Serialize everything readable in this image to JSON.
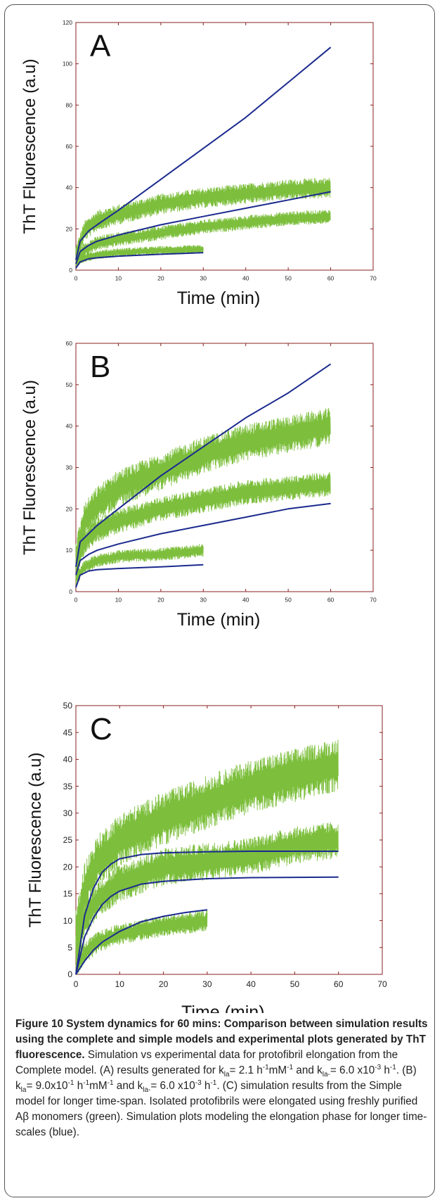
{
  "colors": {
    "experimental": "#7dbf3d",
    "simulation": "#1b2a8e",
    "axis": "#8a2020"
  },
  "chart_data": [
    {
      "type": "line",
      "panel_label": "A",
      "xlabel": "Time (min)",
      "ylabel": "ThT Fluorescence (a.u)",
      "xlim": [
        0,
        70
      ],
      "ylim": [
        0,
        120
      ],
      "xticks": [
        "0",
        "10",
        "20",
        "30",
        "40",
        "50",
        "60",
        "70"
      ],
      "yticks": [
        "0",
        "20",
        "40",
        "60",
        "80",
        "100",
        "120"
      ],
      "series": [
        {
          "kind": "experimental",
          "t_end": 60,
          "points": [
            [
              0,
              7
            ],
            [
              2,
              19
            ],
            [
              5,
              24
            ],
            [
              10,
              27
            ],
            [
              20,
              32
            ],
            [
              30,
              35
            ],
            [
              40,
              37
            ],
            [
              50,
              39
            ],
            [
              60,
              40
            ]
          ],
          "noise": 5
        },
        {
          "kind": "experimental",
          "t_end": 60,
          "points": [
            [
              0,
              5
            ],
            [
              2,
              10
            ],
            [
              5,
              13
            ],
            [
              10,
              15
            ],
            [
              20,
              18
            ],
            [
              30,
              21
            ],
            [
              40,
              23
            ],
            [
              50,
              25
            ],
            [
              60,
              26
            ]
          ],
          "noise": 3.5
        },
        {
          "kind": "experimental",
          "t_end": 30,
          "points": [
            [
              0,
              3
            ],
            [
              2,
              6
            ],
            [
              5,
              7.5
            ],
            [
              10,
              8.5
            ],
            [
              20,
              9.5
            ],
            [
              30,
              10
            ]
          ],
          "noise": 2.2
        },
        {
          "kind": "simulation",
          "points": [
            [
              0,
              5
            ],
            [
              1,
              14
            ],
            [
              3,
              19
            ],
            [
              5,
              22
            ],
            [
              10,
              29
            ],
            [
              20,
              44
            ],
            [
              30,
              59
            ],
            [
              40,
              74
            ],
            [
              50,
              91
            ],
            [
              60,
              108
            ]
          ]
        },
        {
          "kind": "simulation",
          "points": [
            [
              0,
              3
            ],
            [
              1,
              9
            ],
            [
              3,
              12
            ],
            [
              5,
              14
            ],
            [
              10,
              17
            ],
            [
              20,
              22
            ],
            [
              30,
              26
            ],
            [
              40,
              30
            ],
            [
              50,
              34
            ],
            [
              60,
              38
            ]
          ]
        },
        {
          "kind": "simulation",
          "points": [
            [
              0,
              1
            ],
            [
              1,
              4
            ],
            [
              3,
              5.5
            ],
            [
              5,
              6
            ],
            [
              10,
              6.8
            ],
            [
              20,
              7.7
            ],
            [
              30,
              8.5
            ]
          ]
        }
      ]
    },
    {
      "type": "line",
      "panel_label": "B",
      "xlabel": "Time (min)",
      "ylabel": "ThT Fluorescence (a.u)",
      "xlim": [
        0,
        70
      ],
      "ylim": [
        0,
        60
      ],
      "xticks": [
        "0",
        "10",
        "20",
        "30",
        "40",
        "50",
        "60",
        "70"
      ],
      "yticks": [
        "0",
        "10",
        "20",
        "30",
        "40",
        "50",
        "60"
      ],
      "series": [
        {
          "kind": "experimental",
          "t_end": 60,
          "points": [
            [
              0,
              8
            ],
            [
              2,
              17
            ],
            [
              5,
              21
            ],
            [
              10,
              25
            ],
            [
              20,
              29
            ],
            [
              30,
              33
            ],
            [
              40,
              36
            ],
            [
              50,
              38
            ],
            [
              60,
              40
            ]
          ],
          "noise": 4.5
        },
        {
          "kind": "experimental",
          "t_end": 60,
          "points": [
            [
              0,
              6
            ],
            [
              2,
              12
            ],
            [
              5,
              15
            ],
            [
              10,
              17
            ],
            [
              20,
              20
            ],
            [
              30,
              22
            ],
            [
              40,
              24
            ],
            [
              50,
              25
            ],
            [
              60,
              26
            ]
          ],
          "noise": 3
        },
        {
          "kind": "experimental",
          "t_end": 30,
          "points": [
            [
              0,
              3
            ],
            [
              2,
              6
            ],
            [
              5,
              7.5
            ],
            [
              10,
              8.5
            ],
            [
              20,
              9
            ],
            [
              30,
              10
            ]
          ],
          "noise": 1.6
        },
        {
          "kind": "simulation",
          "points": [
            [
              0,
              6
            ],
            [
              1,
              12
            ],
            [
              3,
              14
            ],
            [
              5,
              16
            ],
            [
              10,
              20
            ],
            [
              20,
              28
            ],
            [
              30,
              35
            ],
            [
              40,
              42
            ],
            [
              50,
              48
            ],
            [
              60,
              55
            ]
          ]
        },
        {
          "kind": "simulation",
          "points": [
            [
              0,
              4
            ],
            [
              1,
              7.5
            ],
            [
              3,
              9
            ],
            [
              5,
              10
            ],
            [
              10,
              11.5
            ],
            [
              20,
              14
            ],
            [
              30,
              16
            ],
            [
              40,
              18
            ],
            [
              50,
              20
            ],
            [
              60,
              21.3
            ]
          ]
        },
        {
          "kind": "simulation",
          "points": [
            [
              0,
              1
            ],
            [
              1,
              4
            ],
            [
              3,
              5
            ],
            [
              5,
              5.3
            ],
            [
              10,
              5.6
            ],
            [
              20,
              6
            ],
            [
              30,
              6.5
            ]
          ]
        }
      ]
    },
    {
      "type": "line",
      "panel_label": "C",
      "xlabel": "Time (min)",
      "ylabel": "ThT Fluorescence (a.u)",
      "xlim": [
        0,
        70
      ],
      "ylim": [
        0,
        50
      ],
      "xticks": [
        "0",
        "10",
        "20",
        "30",
        "40",
        "50",
        "60",
        "70"
      ],
      "yticks": [
        "0",
        "5",
        "10",
        "15",
        "20",
        "25",
        "30",
        "35",
        "40",
        "45",
        "50"
      ],
      "series": [
        {
          "kind": "experimental",
          "t_end": 60,
          "points": [
            [
              0,
              7
            ],
            [
              2,
              16
            ],
            [
              5,
              21
            ],
            [
              10,
              25
            ],
            [
              20,
              29
            ],
            [
              30,
              32
            ],
            [
              40,
              35
            ],
            [
              50,
              37
            ],
            [
              60,
              39
            ]
          ],
          "noise": 5
        },
        {
          "kind": "experimental",
          "t_end": 60,
          "points": [
            [
              0,
              4
            ],
            [
              2,
              10
            ],
            [
              5,
              14
            ],
            [
              10,
              17
            ],
            [
              20,
              20
            ],
            [
              30,
              21
            ],
            [
              40,
              22
            ],
            [
              50,
              24
            ],
            [
              60,
              25
            ]
          ],
          "noise": 3.5
        },
        {
          "kind": "experimental",
          "t_end": 30,
          "points": [
            [
              0,
              1
            ],
            [
              2,
              4
            ],
            [
              5,
              6
            ],
            [
              10,
              7.5
            ],
            [
              20,
              9
            ],
            [
              30,
              10
            ]
          ],
          "noise": 2
        },
        {
          "kind": "simulation",
          "points": [
            [
              0,
              0
            ],
            [
              2,
              11
            ],
            [
              4,
              16
            ],
            [
              6,
              19
            ],
            [
              8,
              20.5
            ],
            [
              10,
              21.5
            ],
            [
              15,
              22.3
            ],
            [
              20,
              22.6
            ],
            [
              30,
              22.8
            ],
            [
              40,
              22.9
            ],
            [
              60,
              22.9
            ]
          ]
        },
        {
          "kind": "simulation",
          "points": [
            [
              0,
              0
            ],
            [
              2,
              7
            ],
            [
              4,
              10.5
            ],
            [
              6,
              13
            ],
            [
              8,
              14.5
            ],
            [
              10,
              15.5
            ],
            [
              15,
              16.8
            ],
            [
              20,
              17.3
            ],
            [
              30,
              17.8
            ],
            [
              40,
              18
            ],
            [
              60,
              18.1
            ]
          ]
        },
        {
          "kind": "simulation",
          "points": [
            [
              0,
              0
            ],
            [
              2,
              2.5
            ],
            [
              4,
              4.5
            ],
            [
              6,
              6
            ],
            [
              10,
              8
            ],
            [
              15,
              9.8
            ],
            [
              20,
              10.8
            ],
            [
              25,
              11.5
            ],
            [
              30,
              12
            ]
          ]
        }
      ]
    }
  ],
  "caption": {
    "bold": "Figure 10 System dynamics for 60 mins: Comparison between simulation results using the complete and simple models and experimental plots generated by ThT fluorescence.",
    "t1": " Simulation vs experimental data for protofibril elongation from the Complete model. (A) results generated for k",
    "s1": "la",
    "t2": "= 2.1 h",
    "p1": "-1",
    "t3": "mM",
    "p2": "-1",
    "t4": " and k",
    "s2": "la-",
    "t5": "= 6.0 x10",
    "p3": "-3",
    "t6": " h",
    "p4": "-1",
    "t7": ". (B) k",
    "s3": "la",
    "t8": "= 9.0x10",
    "p5": "-1",
    "t9": " h",
    "p6": "-1",
    "t10": "mM",
    "p7": "-1",
    "t11": " and k",
    "s4": "la-",
    "t12": "= 6.0 x10",
    "p8": "-3",
    "t13": " h",
    "p9": "-1",
    "t14": ". (C) simulation results from the Simple model for longer time-span. Isolated protofibrils were elongated using freshly purified Aβ monomers (green). Simulation plots modeling the elongation phase for longer time-scales (blue)."
  }
}
